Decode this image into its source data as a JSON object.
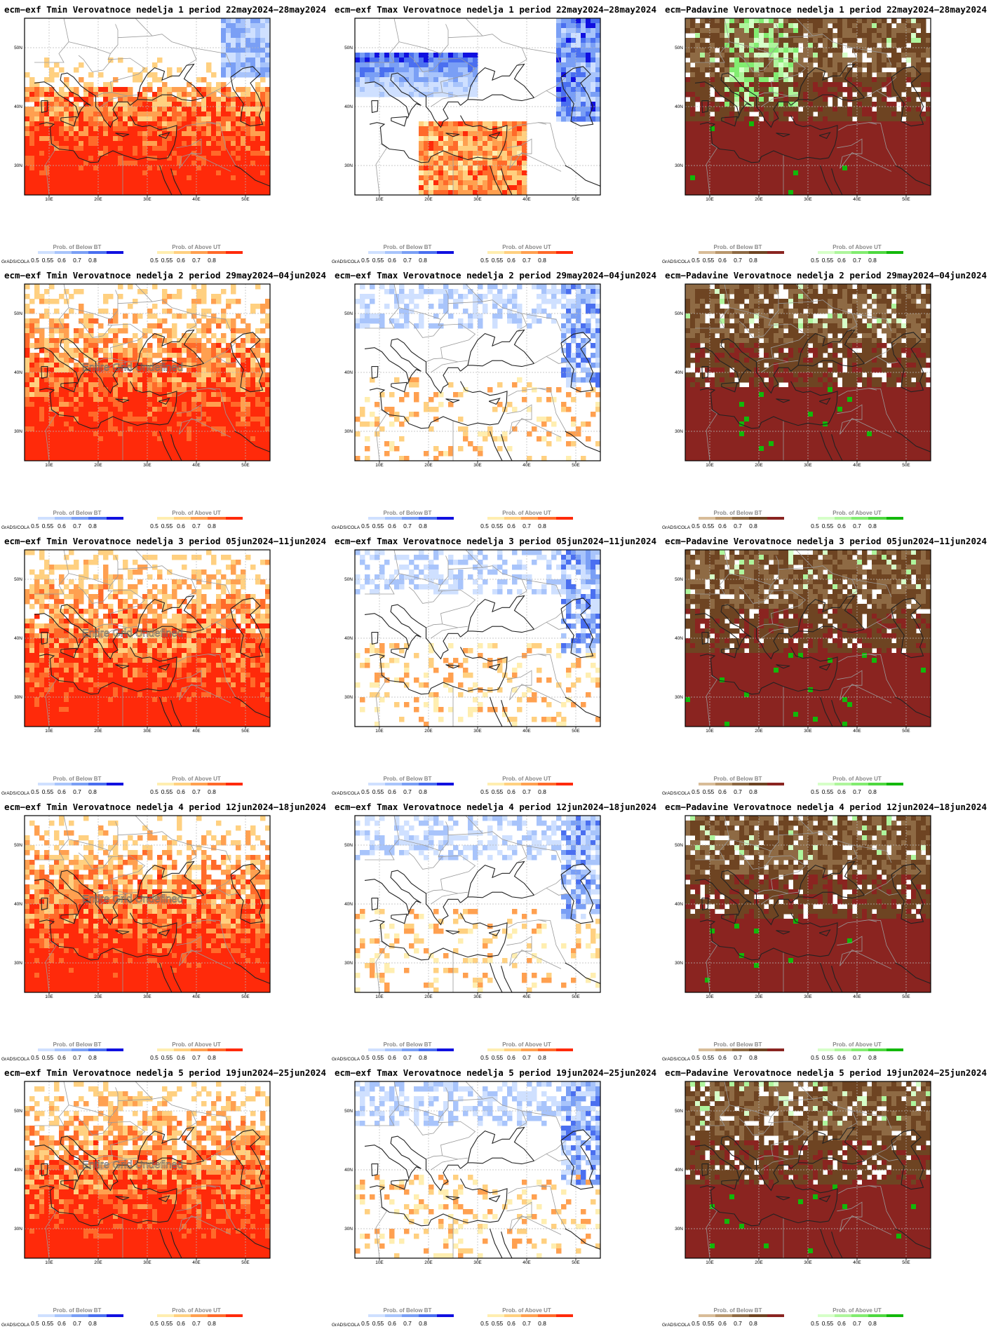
{
  "panels": [
    {
      "title": "ecm−exf Tmin Verovatnoce nedelja 1 period 22may2024−28may2024",
      "kind": "tmin",
      "undefined_text": ""
    },
    {
      "title": "ecm−exf Tmax Verovatnoce nedelja 1 period 22may2024−28may2024",
      "kind": "tmax",
      "undefined_text": ""
    },
    {
      "title": "ecm−Padavine Verovatnoce nedelja 1 period 22may2024−28may2024",
      "kind": "precip",
      "undefined_text": ""
    },
    {
      "title": "ecm−exf Tmin Verovatnoce nedelja 2 period 29may2024−04jun2024",
      "kind": "tmin",
      "undefined_text": "Entire Grid Undefined"
    },
    {
      "title": "ecm−exf Tmax Verovatnoce nedelja 2 period 29may2024−04jun2024",
      "kind": "tmax",
      "undefined_text": ""
    },
    {
      "title": "ecm−Padavine Verovatnoce nedelja 2 period 29may2024−04jun2024",
      "kind": "precip",
      "undefined_text": ""
    },
    {
      "title": "ecm−exf Tmin Verovatnoce nedelja 3 period 05jun2024−11jun2024",
      "kind": "tmin",
      "undefined_text": "Entire Grid Undefined"
    },
    {
      "title": "ecm−exf Tmax Verovatnoce nedelja 3 period 05jun2024−11jun2024",
      "kind": "tmax",
      "undefined_text": ""
    },
    {
      "title": "ecm−Padavine Verovatnoce nedelja 3 period 05jun2024−11jun2024",
      "kind": "precip",
      "undefined_text": ""
    },
    {
      "title": "ecm−exf Tmin Verovatnoce nedelja 4 period 12jun2024−18jun2024",
      "kind": "tmin",
      "undefined_text": "Entire Grid Undefined"
    },
    {
      "title": "ecm−exf Tmax Verovatnoce nedelja 4 period 12jun2024−18jun2024",
      "kind": "tmax",
      "undefined_text": ""
    },
    {
      "title": "ecm−Padavine Verovatnoce nedelja 4 period 12jun2024−18jun2024",
      "kind": "precip",
      "undefined_text": ""
    },
    {
      "title": "ecm−exf Tmin Verovatnoce nedelja 5 period 19jun2024−25jun2024",
      "kind": "tmin",
      "undefined_text": "Entire Grid Undefined"
    },
    {
      "title": "ecm−exf Tmax Verovatnoce nedelja 5 period 19jun2024−25jun2024",
      "kind": "tmax",
      "undefined_text": ""
    },
    {
      "title": "ecm−Padavine Verovatnoce nedelja 5 period 19jun2024−25jun2024",
      "kind": "precip",
      "undefined_text": ""
    }
  ],
  "axes": {
    "lon_labels": [
      "10E",
      "20E",
      "30E",
      "40E",
      "50E"
    ],
    "lat_labels": [
      "50N",
      "40N",
      "30N"
    ]
  },
  "legend": {
    "grads_label": "GrADS/COLA",
    "below_title": "Prob. of Below BT",
    "above_title": "Prob. of Above UT",
    "ticks": [
      "0.5",
      "0.55",
      "0.6",
      "0.7",
      "0.8"
    ]
  },
  "colorscales": {
    "tmin": {
      "below": [
        "#cfe0ff",
        "#a8c4fb",
        "#7a9ff5",
        "#4a6ff0",
        "#1010e0"
      ],
      "above": [
        "#ffeeb0",
        "#ffd080",
        "#ffa050",
        "#ff6a2a",
        "#ff2a0a"
      ]
    },
    "tmax": {
      "below": [
        "#cfe0ff",
        "#a8c4fb",
        "#7a9ff5",
        "#4a6ff0",
        "#1010e0"
      ],
      "above": [
        "#ffeeb0",
        "#ffd080",
        "#ffa050",
        "#ff6a2a",
        "#ff2a0a"
      ]
    },
    "precip": {
      "below": [
        "#d8bc98",
        "#b8966c",
        "#8e6a44",
        "#6e4422",
        "#8a2420"
      ],
      "above": [
        "#d6ffc8",
        "#aef59c",
        "#82ec70",
        "#4ed840",
        "#12b80a"
      ]
    }
  }
}
